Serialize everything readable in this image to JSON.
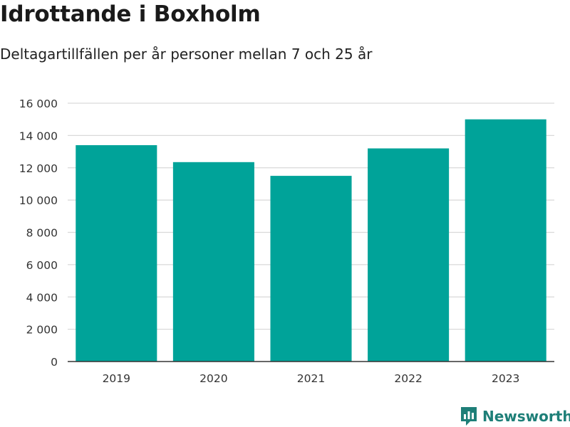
{
  "title": "Idrottande i Boxholm",
  "subtitle": "Deltagartillfällen per år personer mellan 7 och 25 år",
  "brand": {
    "name": "Newsworthy",
    "icon": "newsworthy-logo-icon",
    "color": "#1e7f78"
  },
  "colors": {
    "bar": "#00a399",
    "grid": "#d9d9d9",
    "axis": "#333333",
    "tick_text": "#333333"
  },
  "chart_data": {
    "type": "bar",
    "categories": [
      "2019",
      "2020",
      "2021",
      "2022",
      "2023"
    ],
    "values": [
      13400,
      12350,
      11500,
      13200,
      15000
    ],
    "ylim": [
      0,
      16000
    ],
    "yticks": [
      0,
      2000,
      4000,
      6000,
      8000,
      10000,
      12000,
      14000,
      16000
    ],
    "ytick_labels": [
      "0",
      "2 000",
      "4 000",
      "6 000",
      "8 000",
      "10 000",
      "12 000",
      "14 000",
      "16 000"
    ],
    "grid": true,
    "legend": "none"
  }
}
